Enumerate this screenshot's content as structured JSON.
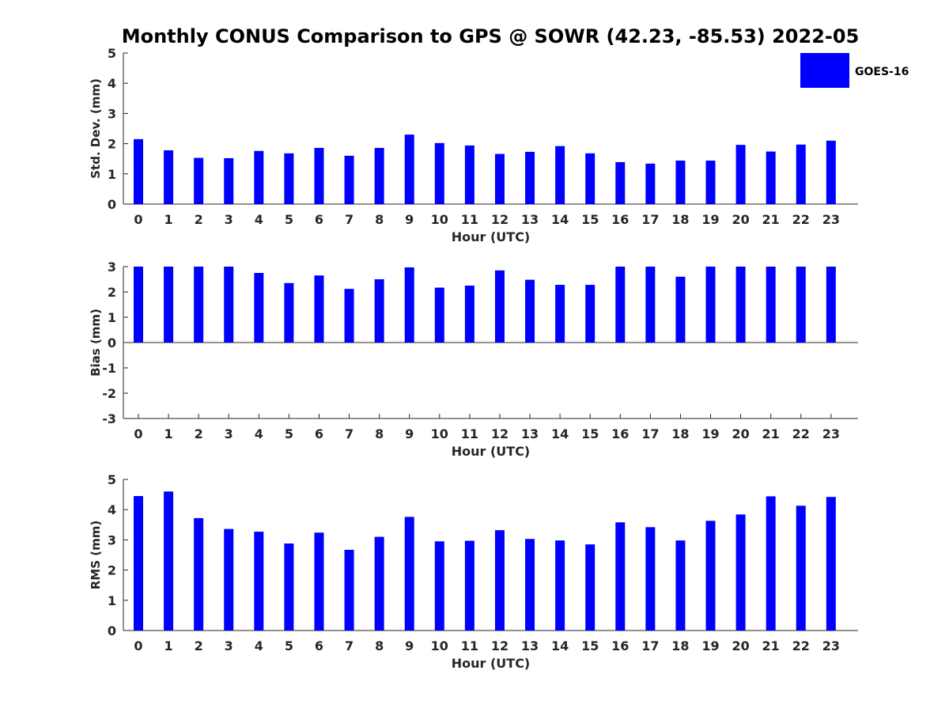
{
  "title": "Monthly CONUS Comparison to GPS @ SOWR (42.23, -85.53) 2022-05",
  "legend": {
    "label": "GOES-16",
    "color": "#0000ff",
    "placement": "top-right"
  },
  "colors": {
    "bar": "#0000ff",
    "axis": "#262626",
    "background": "#ffffff"
  },
  "chart_data": [
    {
      "type": "bar",
      "xlabel": "Hour (UTC)",
      "ylabel": "Std. Dev. (mm)",
      "categories": [
        "0",
        "1",
        "2",
        "3",
        "4",
        "5",
        "6",
        "7",
        "8",
        "9",
        "10",
        "11",
        "12",
        "13",
        "14",
        "15",
        "16",
        "17",
        "18",
        "19",
        "20",
        "21",
        "22",
        "23"
      ],
      "series": [
        {
          "name": "GOES-16",
          "values": [
            2.15,
            1.78,
            1.53,
            1.52,
            1.76,
            1.68,
            1.86,
            1.6,
            1.86,
            2.3,
            2.02,
            1.94,
            1.66,
            1.73,
            1.92,
            1.68,
            1.39,
            1.34,
            1.44,
            1.44,
            1.96,
            1.74,
            1.97,
            2.1
          ]
        }
      ],
      "ylim": [
        0,
        5
      ],
      "yticks": [
        "0",
        "1",
        "2",
        "3",
        "4",
        "5"
      ],
      "grid": false
    },
    {
      "type": "bar",
      "xlabel": "Hour (UTC)",
      "ylabel": "Bias (mm)",
      "categories": [
        "0",
        "1",
        "2",
        "3",
        "4",
        "5",
        "6",
        "7",
        "8",
        "9",
        "10",
        "11",
        "12",
        "13",
        "14",
        "15",
        "16",
        "17",
        "18",
        "19",
        "20",
        "21",
        "22",
        "23"
      ],
      "series": [
        {
          "name": "GOES-16",
          "values": [
            3.0,
            3.0,
            3.0,
            3.0,
            2.75,
            2.35,
            2.65,
            2.12,
            2.5,
            2.97,
            2.17,
            2.25,
            2.85,
            2.48,
            2.28,
            2.28,
            3.0,
            3.0,
            2.6,
            3.0,
            3.0,
            3.0,
            3.0,
            3.0
          ]
        }
      ],
      "ylim": [
        -3,
        3
      ],
      "yticks": [
        "-3",
        "-2",
        "-1",
        "0",
        "1",
        "2",
        "3"
      ],
      "zero_line": true,
      "grid": false
    },
    {
      "type": "bar",
      "xlabel": "Hour (UTC)",
      "ylabel": "RMS (mm)",
      "categories": [
        "0",
        "1",
        "2",
        "3",
        "4",
        "5",
        "6",
        "7",
        "8",
        "9",
        "10",
        "11",
        "12",
        "13",
        "14",
        "15",
        "16",
        "17",
        "18",
        "19",
        "20",
        "21",
        "22",
        "23"
      ],
      "series": [
        {
          "name": "GOES-16",
          "values": [
            4.45,
            4.6,
            3.72,
            3.36,
            3.27,
            2.88,
            3.24,
            2.67,
            3.1,
            3.76,
            2.95,
            2.97,
            3.32,
            3.03,
            2.98,
            2.85,
            3.58,
            3.42,
            2.98,
            3.63,
            3.84,
            4.44,
            4.13,
            4.42
          ]
        }
      ],
      "ylim": [
        0,
        5
      ],
      "yticks": [
        "0",
        "1",
        "2",
        "3",
        "4",
        "5"
      ],
      "grid": false
    }
  ]
}
